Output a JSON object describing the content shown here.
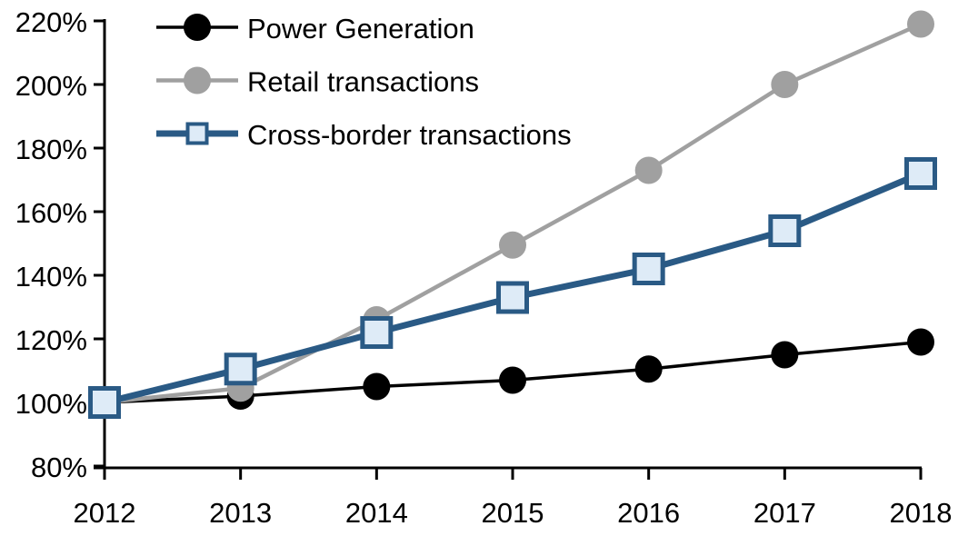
{
  "chart_data": {
    "type": "line",
    "title": "",
    "xlabel": "",
    "ylabel": "",
    "background": "#FFFFFF",
    "grid": false,
    "legend_position": "top-left-inside",
    "axis_color": "#000000",
    "categories": [
      "2012",
      "2013",
      "2014",
      "2015",
      "2016",
      "2017",
      "2018"
    ],
    "y_axis": {
      "min": 80,
      "max": 220,
      "step": 20,
      "unit": "%",
      "tick_labels": [
        "80%",
        "100%",
        "120%",
        "140%",
        "160%",
        "180%",
        "200%",
        "220%"
      ]
    },
    "series": [
      {
        "name": "Power Generation",
        "marker": "circle",
        "color": "#000000",
        "marker_fill": "#000000",
        "line_width": 3.5,
        "values": [
          100,
          102,
          105,
          107,
          110.5,
          115,
          119
        ]
      },
      {
        "name": "Retail transactions",
        "marker": "circle",
        "color": "#A0A0A0",
        "marker_fill": "#A0A0A0",
        "line_width": 4.5,
        "values": [
          100,
          104.5,
          126,
          149.5,
          173,
          200,
          219
        ]
      },
      {
        "name": "Cross-border transactions",
        "marker": "square",
        "color": "#2A5A85",
        "marker_fill": "#DEEBF7",
        "line_width": 7,
        "values": [
          100,
          110.5,
          122,
          133,
          142,
          154,
          172
        ]
      }
    ]
  }
}
